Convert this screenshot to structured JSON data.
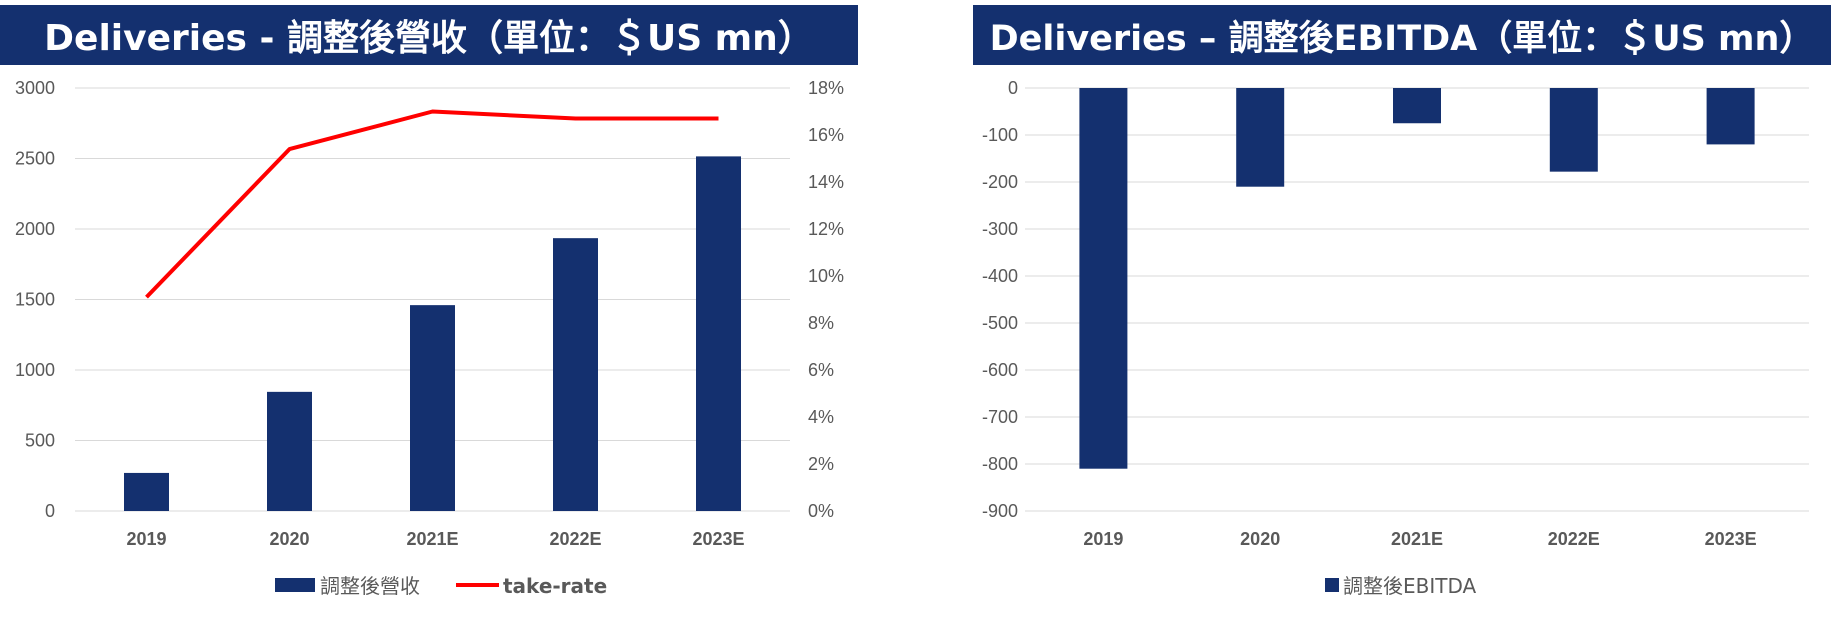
{
  "colors": {
    "bar": "#14306f",
    "line": "#ff0000",
    "grid": "#d9d9d9",
    "title_bg": "#14306f"
  },
  "chart_data": [
    {
      "type": "bar",
      "title": "Deliveries - 調整後營收（單位：＄US mn）",
      "categories": [
        "2019",
        "2020",
        "2021E",
        "2022E",
        "2023E"
      ],
      "ylim": [
        0,
        3000
      ],
      "yticks": [
        "0",
        "500",
        "1000",
        "1500",
        "2000",
        "2500",
        "3000"
      ],
      "y2lim": [
        0,
        18
      ],
      "y2ticks": [
        "0%",
        "2%",
        "4%",
        "6%",
        "8%",
        "10%",
        "12%",
        "14%",
        "16%",
        "18%"
      ],
      "grid": true,
      "legend": "bottom",
      "series": [
        {
          "name": "調整後營收",
          "kind": "bar",
          "values": [
            270,
            845,
            1460,
            1935,
            2515
          ]
        },
        {
          "name": "take-rate",
          "kind": "line",
          "axis": "right",
          "values": [
            9.1,
            15.4,
            17.0,
            16.7,
            16.7
          ]
        }
      ]
    },
    {
      "type": "bar",
      "title": "Deliveries – 調整後EBITDA（單位：＄US mn）",
      "categories": [
        "2019",
        "2020",
        "2021E",
        "2022E",
        "2023E"
      ],
      "ylim": [
        -900,
        0
      ],
      "yticks": [
        "0",
        "-100",
        "-200",
        "-300",
        "-400",
        "-500",
        "-600",
        "-700",
        "-800",
        "-900"
      ],
      "grid": true,
      "legend": "bottom",
      "series": [
        {
          "name": "調整後EBITDA",
          "kind": "bar",
          "values": [
            -810,
            -210,
            -75,
            -178,
            -120
          ]
        }
      ]
    }
  ]
}
